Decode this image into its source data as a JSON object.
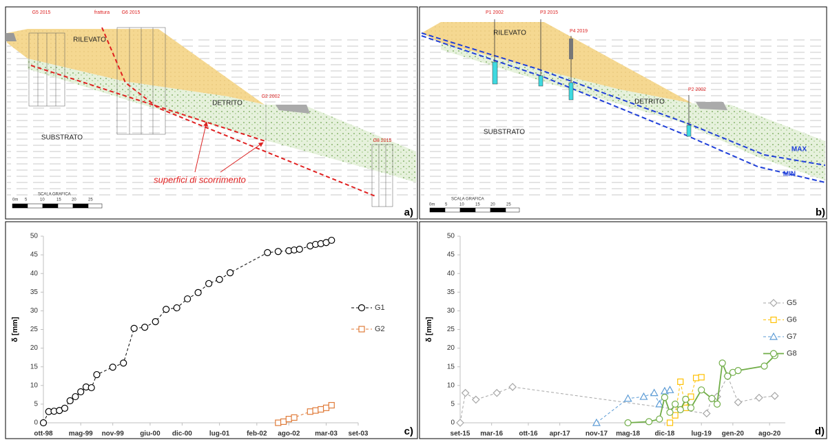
{
  "diagrams": [
    {
      "panel": "a)",
      "boreholes": [
        "G5 2015",
        "G6 2015",
        "G2 2002",
        "G8 2015"
      ],
      "fracture": "frattura",
      "units": [
        "RILEVATO",
        "DETRITO",
        "SUBSTRATO"
      ],
      "slip_label": "superfici di  scorrimento",
      "scale_title": "SCALA GRAFICA",
      "scale_ticks": [
        "0m",
        "5",
        "10",
        "15",
        "20",
        "25"
      ]
    },
    {
      "panel": "b)",
      "boreholes": [
        "P1 2002",
        "P3 2015",
        "P4 2019",
        "P2 2002"
      ],
      "units": [
        "RILEVATO",
        "DETRITO",
        "SUBSTRATO"
      ],
      "water_levels": [
        "MAX",
        "MIN"
      ],
      "scale_title": "SCALA GRAFICA",
      "scale_ticks": [
        "0m",
        "5",
        "10",
        "15",
        "20",
        "25"
      ]
    }
  ],
  "chart_data": [
    {
      "type": "line",
      "panel_label": "c)",
      "y_label": "δ [mm]",
      "xlim": [
        "1998-10",
        "2003-09"
      ],
      "xticks": [
        {
          "value": "1998-10",
          "label": "ott-98"
        },
        {
          "value": "1999-05",
          "label": "mag-99"
        },
        {
          "value": "1999-11",
          "label": "nov-99"
        },
        {
          "value": "2000-06",
          "label": "giu-00"
        },
        {
          "value": "2000-12",
          "label": "dic-00"
        },
        {
          "value": "2001-07",
          "label": "lug-01"
        },
        {
          "value": "2002-02",
          "label": "feb-02"
        },
        {
          "value": "2002-08",
          "label": "ago-02"
        },
        {
          "value": "2003-03",
          "label": "mar-03"
        },
        {
          "value": "2003-09",
          "label": "set-03"
        }
      ],
      "ylim": [
        0,
        50
      ],
      "yticks": [
        0,
        5,
        10,
        15,
        20,
        25,
        30,
        35,
        40,
        45,
        50
      ],
      "legend": "right",
      "series": [
        {
          "name": "G1",
          "color": "#000000",
          "marker": "circle",
          "line_style": "dashed",
          "x": [
            "1998-10",
            "1998-11",
            "1998-12",
            "1999-01",
            "1999-02",
            "1999-03",
            "1999-04",
            "1999-05",
            "1999-06",
            "1999-07",
            "1999-08",
            "1999-11",
            "2000-01",
            "2000-03",
            "2000-05",
            "2000-07",
            "2000-09",
            "2000-11",
            "2001-01",
            "2001-03",
            "2001-05",
            "2001-07",
            "2001-09",
            "2002-04",
            "2002-06",
            "2002-08",
            "2002-09",
            "2002-10",
            "2002-12",
            "2003-01",
            "2003-02",
            "2003-03",
            "2003-04"
          ],
          "values": [
            0,
            3,
            3.1,
            3.3,
            3.9,
            5.9,
            7,
            8.3,
            9.6,
            9.4,
            12.9,
            14.9,
            16,
            25.3,
            25.6,
            27.1,
            30.4,
            30.8,
            33.2,
            34.9,
            37.3,
            38.4,
            40.2,
            45.6,
            45.9,
            46.1,
            46.3,
            46.5,
            47.4,
            47.8,
            48,
            48.3,
            48.9
          ]
        },
        {
          "name": "G2",
          "color": "#e07b39",
          "marker": "square",
          "line_style": "dashed",
          "x": [
            "2002-06",
            "2002-07",
            "2002-08",
            "2002-09",
            "2002-12",
            "2003-01",
            "2003-02",
            "2003-03",
            "2003-04"
          ],
          "values": [
            0,
            0.3,
            1,
            1.4,
            3,
            3.3,
            3.6,
            4,
            4.7
          ]
        }
      ]
    },
    {
      "type": "line",
      "panel_label": "d)",
      "y_label": "δ [mm]",
      "xlim": [
        "2015-09",
        "2020-11"
      ],
      "xticks": [
        {
          "value": "2015-09",
          "label": "set-15"
        },
        {
          "value": "2016-03",
          "label": "mar-16"
        },
        {
          "value": "2016-10",
          "label": "ott-16"
        },
        {
          "value": "2017-04",
          "label": "apr-17"
        },
        {
          "value": "2017-11",
          "label": "nov-17"
        },
        {
          "value": "2018-05",
          "label": "mag-18"
        },
        {
          "value": "2018-12",
          "label": "dic-18"
        },
        {
          "value": "2019-07",
          "label": "lug-19"
        },
        {
          "value": "2020-01",
          "label": "gen-20"
        },
        {
          "value": "2020-08",
          "label": "ago-20"
        }
      ],
      "ylim": [
        0,
        50
      ],
      "yticks": [
        0,
        5,
        10,
        15,
        20,
        25,
        30,
        35,
        40,
        45,
        50
      ],
      "legend": "right",
      "series": [
        {
          "name": "G5",
          "color": "#a6a6a6",
          "marker": "diamond",
          "line_style": "dashed",
          "x": [
            "2015-09",
            "2015-10",
            "2015-12",
            "2016-04",
            "2016-07",
            "2019-08",
            "2019-09",
            "2019-10",
            "2019-12",
            "2020-02",
            "2020-06",
            "2020-09"
          ],
          "values": [
            0,
            8,
            6.2,
            8,
            9.6,
            2.5,
            6.5,
            7,
            12.5,
            5.5,
            6.7,
            7.2
          ]
        },
        {
          "name": "G6",
          "color": "#ffc000",
          "marker": "square",
          "line_style": "dashed",
          "x": [
            "2019-01",
            "2019-02",
            "2019-03",
            "2019-04",
            "2019-05",
            "2019-06",
            "2019-07"
          ],
          "values": [
            0,
            2,
            11,
            4,
            7,
            12,
            12.2
          ]
        },
        {
          "name": "G7",
          "color": "#5b9bd5",
          "marker": "triangle",
          "line_style": "dashed",
          "x": [
            "2017-11",
            "2018-05",
            "2018-08",
            "2018-10",
            "2018-11",
            "2018-12",
            "2019-01"
          ],
          "values": [
            0,
            6.5,
            7,
            8,
            5,
            8.5,
            8.8
          ]
        },
        {
          "name": "G8",
          "color": "#70ad47",
          "marker": "circle",
          "line_style": "solid",
          "x": [
            "2018-05",
            "2018-09",
            "2018-11",
            "2018-12",
            "2019-01",
            "2019-02",
            "2019-03",
            "2019-04",
            "2019-05",
            "2019-07",
            "2019-09",
            "2019-10",
            "2019-11",
            "2019-12",
            "2020-01",
            "2020-02",
            "2020-07",
            "2020-09"
          ],
          "values": [
            0,
            0.3,
            1,
            6.8,
            2.8,
            5,
            3.5,
            6.3,
            4,
            8.8,
            6.5,
            5,
            16,
            12.5,
            13.5,
            14,
            15.2,
            18
          ]
        }
      ]
    }
  ]
}
